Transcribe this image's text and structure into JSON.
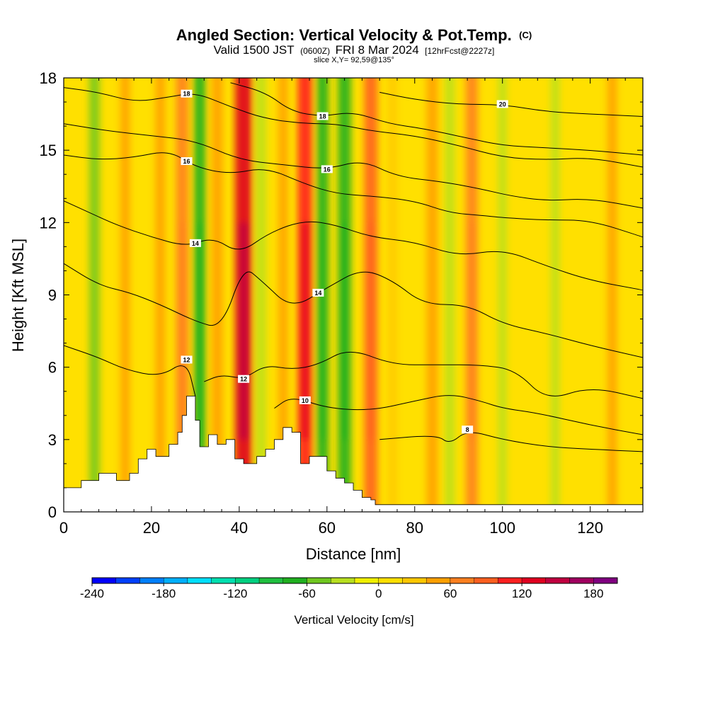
{
  "header": {
    "title_main": "Angled Section: Vertical Velocity & Pot.Temp.",
    "title_mark": "(C)",
    "valid_a": "Valid 1500 JST",
    "valid_b": "(0600Z)",
    "valid_c": "FRI 8 Mar 2024",
    "valid_d": "[12hrFcst@2227z]",
    "slice": "slice X,Y= 92,59@135°"
  },
  "chart_data": {
    "type": "heatmap",
    "xlabel": "Distance [nm]",
    "ylabel": "Height [Kft MSL]",
    "xlim": [
      0,
      132
    ],
    "ylim": [
      0,
      18
    ],
    "xticks": [
      0,
      20,
      40,
      60,
      80,
      100,
      120
    ],
    "yticks": [
      0,
      3,
      6,
      9,
      12,
      15,
      18
    ],
    "colorbar": {
      "title": "Vertical Velocity [cm/s]",
      "range": [
        -240,
        200
      ],
      "ticks": [
        -240,
        -180,
        -120,
        -60,
        0,
        60,
        120,
        180
      ],
      "colors": [
        "#0000ff",
        "#0040ff",
        "#0080ff",
        "#00b0ff",
        "#00e0ff",
        "#00e0b0",
        "#00d080",
        "#20c040",
        "#20b020",
        "#70c820",
        "#b8e020",
        "#f0f000",
        "#ffe000",
        "#ffc800",
        "#ffa000",
        "#ff8020",
        "#ff6020",
        "#ff2020",
        "#e00020",
        "#c00040",
        "#a00060",
        "#800080"
      ]
    },
    "velocity_streaks": [
      {
        "x": 7,
        "w": -50
      },
      {
        "x": 14,
        "w": 40
      },
      {
        "x": 22,
        "w": 45
      },
      {
        "x": 27,
        "w": 75
      },
      {
        "x": 31,
        "w": -70
      },
      {
        "x": 35,
        "w": 60
      },
      {
        "x": 41,
        "w": 130
      },
      {
        "x": 45,
        "w": -40
      },
      {
        "x": 50,
        "w": 40
      },
      {
        "x": 55,
        "w": 100
      },
      {
        "x": 59,
        "w": -70
      },
      {
        "x": 64,
        "w": -80
      },
      {
        "x": 70,
        "w": 85
      },
      {
        "x": 75,
        "w": 30
      },
      {
        "x": 84,
        "w": 60
      },
      {
        "x": 88,
        "w": -40
      },
      {
        "x": 93,
        "w": 70
      },
      {
        "x": 100,
        "w": -30
      },
      {
        "x": 112,
        "w": -30
      },
      {
        "x": 125,
        "w": 40
      }
    ],
    "terrain": {
      "x": [
        0,
        4,
        8,
        12,
        15,
        17,
        19,
        21,
        24,
        26,
        27,
        28,
        30,
        31,
        33,
        35,
        37,
        39,
        41,
        42,
        44,
        46,
        48,
        50,
        52,
        54,
        56,
        58,
        60,
        62,
        64,
        66,
        68,
        70,
        71,
        132
      ],
      "y": [
        1.0,
        1.3,
        1.6,
        1.3,
        1.6,
        2.2,
        2.6,
        2.3,
        2.8,
        3.3,
        4.0,
        4.8,
        3.8,
        2.7,
        3.2,
        2.8,
        3.0,
        2.2,
        2.0,
        2.0,
        2.3,
        2.6,
        3.0,
        3.5,
        3.3,
        2.0,
        2.3,
        2.3,
        1.7,
        1.4,
        1.2,
        0.9,
        0.6,
        0.5,
        0.3,
        0.3
      ]
    },
    "isentropes": [
      {
        "label": "8",
        "label_x": 92,
        "points": [
          [
            72,
            3.0
          ],
          [
            85,
            3.2
          ],
          [
            88,
            2.8
          ],
          [
            92,
            3.4
          ],
          [
            100,
            3.0
          ],
          [
            110,
            2.7
          ],
          [
            120,
            2.6
          ],
          [
            132,
            2.5
          ]
        ]
      },
      {
        "label": "10",
        "label_x": 55,
        "points": [
          [
            48,
            4.3
          ],
          [
            52,
            4.8
          ],
          [
            60,
            4.3
          ],
          [
            70,
            4.2
          ],
          [
            80,
            4.6
          ],
          [
            88,
            4.9
          ],
          [
            95,
            4.6
          ],
          [
            100,
            4.3
          ],
          [
            108,
            4.1
          ],
          [
            120,
            3.6
          ],
          [
            132,
            3.2
          ]
        ]
      },
      {
        "label": "12",
        "label_x": 41,
        "points": [
          [
            32,
            5.4
          ],
          [
            36,
            5.7
          ],
          [
            41,
            5.5
          ],
          [
            46,
            6.1
          ],
          [
            52,
            5.9
          ],
          [
            58,
            6.1
          ],
          [
            65,
            6.8
          ],
          [
            75,
            6.1
          ],
          [
            85,
            6.1
          ],
          [
            95,
            6.1
          ],
          [
            103,
            5.9
          ],
          [
            110,
            4.6
          ],
          [
            120,
            5.2
          ],
          [
            132,
            4.7
          ]
        ]
      },
      {
        "label": "12",
        "label_x": 28,
        "points": [
          [
            0,
            6.9
          ],
          [
            8,
            6.4
          ],
          [
            14,
            5.9
          ],
          [
            22,
            5.6
          ],
          [
            28,
            6.3
          ],
          [
            30,
            4.8
          ]
        ]
      },
      {
        "label": "14",
        "label_x": 58,
        "points": [
          [
            0,
            10.3
          ],
          [
            8,
            9.4
          ],
          [
            15,
            9.1
          ],
          [
            22,
            8.6
          ],
          [
            30,
            7.9
          ],
          [
            36,
            7.6
          ],
          [
            41,
            10.2
          ],
          [
            45,
            9.6
          ],
          [
            52,
            8.4
          ],
          [
            60,
            9.3
          ],
          [
            68,
            10.1
          ],
          [
            75,
            9.6
          ],
          [
            82,
            8.6
          ],
          [
            92,
            8.6
          ],
          [
            100,
            7.8
          ],
          [
            110,
            7.4
          ],
          [
            120,
            6.9
          ],
          [
            132,
            6.4
          ]
        ]
      },
      {
        "label": "14",
        "label_x": 30,
        "points": [
          [
            0,
            12.9
          ],
          [
            6,
            12.4
          ],
          [
            12,
            11.9
          ],
          [
            20,
            11.4
          ],
          [
            28,
            11.0
          ],
          [
            34,
            11.4
          ],
          [
            40,
            10.7
          ],
          [
            47,
            11.6
          ],
          [
            55,
            12.1
          ],
          [
            62,
            11.9
          ],
          [
            70,
            11.4
          ],
          [
            80,
            11.2
          ],
          [
            90,
            10.6
          ],
          [
            100,
            10.9
          ],
          [
            110,
            10.2
          ],
          [
            120,
            9.6
          ],
          [
            132,
            9.2
          ]
        ]
      },
      {
        "label": "16",
        "label_x": 28,
        "points": [
          [
            0,
            14.8
          ],
          [
            8,
            14.6
          ],
          [
            16,
            14.7
          ],
          [
            24,
            15.0
          ],
          [
            30,
            14.3
          ],
          [
            38,
            14.0
          ],
          [
            46,
            14.3
          ],
          [
            55,
            13.6
          ],
          [
            62,
            13.2
          ],
          [
            70,
            13.1
          ],
          [
            80,
            12.9
          ],
          [
            88,
            12.4
          ],
          [
            95,
            12.3
          ],
          [
            100,
            12.2
          ],
          [
            110,
            12.1
          ],
          [
            120,
            12.1
          ],
          [
            132,
            11.4
          ]
        ]
      },
      {
        "label": "16",
        "label_x": 60,
        "points": [
          [
            0,
            16.1
          ],
          [
            10,
            15.8
          ],
          [
            20,
            15.6
          ],
          [
            30,
            15.4
          ],
          [
            40,
            14.6
          ],
          [
            50,
            14.4
          ],
          [
            60,
            14.2
          ],
          [
            68,
            14.6
          ],
          [
            76,
            13.9
          ],
          [
            86,
            13.7
          ],
          [
            95,
            13.4
          ],
          [
            102,
            13.1
          ],
          [
            110,
            12.9
          ],
          [
            120,
            13.0
          ],
          [
            132,
            12.6
          ]
        ]
      },
      {
        "label": "18",
        "label_x": 28,
        "points": [
          [
            0,
            17.6
          ],
          [
            8,
            17.4
          ],
          [
            16,
            17.0
          ],
          [
            24,
            17.2
          ],
          [
            30,
            17.4
          ],
          [
            38,
            16.8
          ],
          [
            46,
            16.3
          ],
          [
            55,
            16.1
          ],
          [
            62,
            16.1
          ],
          [
            70,
            15.8
          ],
          [
            80,
            15.6
          ],
          [
            90,
            15.2
          ],
          [
            100,
            14.7
          ],
          [
            110,
            14.6
          ],
          [
            120,
            14.7
          ],
          [
            132,
            14.3
          ]
        ]
      },
      {
        "label": "18",
        "label_x": 59,
        "points": [
          [
            38,
            17.8
          ],
          [
            46,
            17.4
          ],
          [
            52,
            16.6
          ],
          [
            59,
            16.4
          ],
          [
            66,
            16.6
          ],
          [
            74,
            16.1
          ],
          [
            82,
            15.9
          ],
          [
            92,
            15.5
          ],
          [
            100,
            15.2
          ],
          [
            110,
            15.1
          ],
          [
            120,
            15.0
          ],
          [
            132,
            14.8
          ]
        ]
      },
      {
        "label": "20",
        "label_x": 100,
        "points": [
          [
            72,
            17.4
          ],
          [
            80,
            17.1
          ],
          [
            90,
            16.9
          ],
          [
            100,
            16.9
          ],
          [
            110,
            16.6
          ],
          [
            120,
            16.5
          ],
          [
            132,
            16.4
          ]
        ]
      }
    ]
  }
}
